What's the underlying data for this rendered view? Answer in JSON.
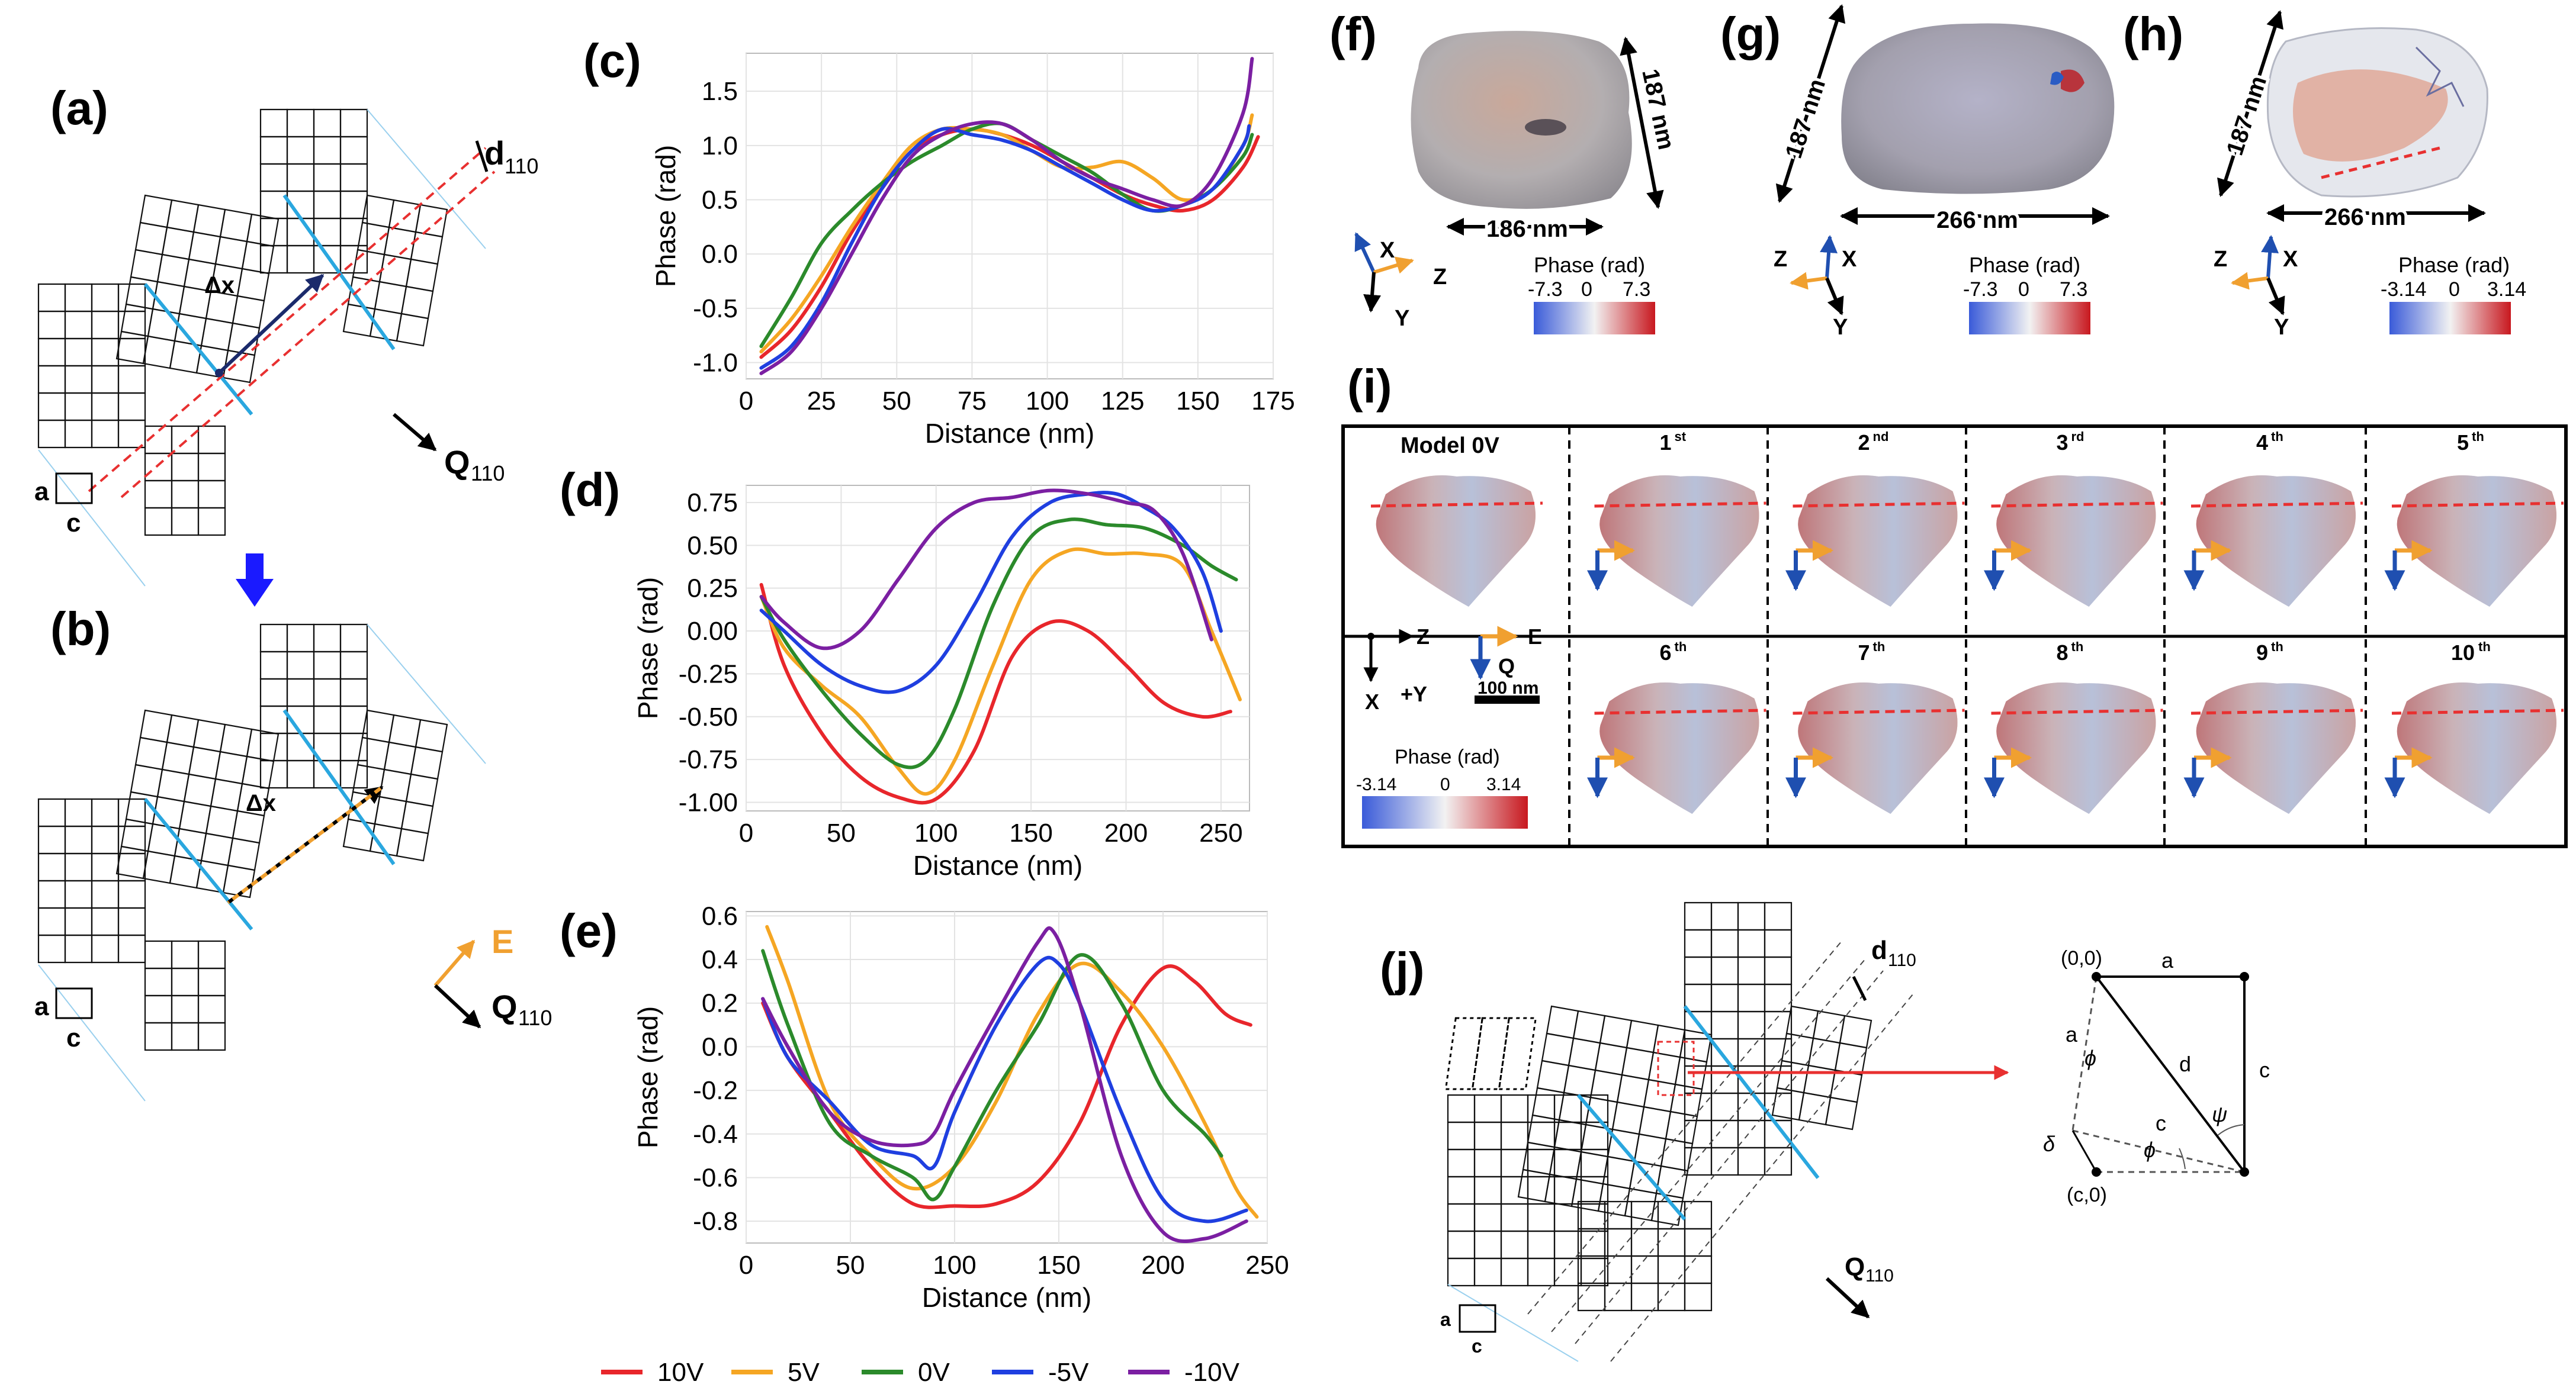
{
  "panels": {
    "a": "(a)",
    "b": "(b)",
    "c": "(c)",
    "d": "(d)",
    "e": "(e)",
    "f": "(f)",
    "g": "(g)",
    "h": "(h)",
    "i": "(i)",
    "j": "(j)"
  },
  "lattice": {
    "d110": "d",
    "d110_sub": "110",
    "q110": "Q",
    "q110_sub": "110",
    "dx": "Δx",
    "e_label": "E",
    "a": "a",
    "c": "c"
  },
  "colors": {
    "10V": "#e8262b",
    "5V": "#f5a623",
    "0V": "#2b8a2b",
    "-5V": "#1f3fe0",
    "-10V": "#7b1fa2",
    "twin": "#2aa7df",
    "arrow": "#1a1aff",
    "e_field": "#f0a030",
    "red_dash": "#e83030"
  },
  "legend": [
    {
      "label": "10V",
      "key": "10V"
    },
    {
      "label": "5V",
      "key": "5V"
    },
    {
      "label": "0V",
      "key": "0V"
    },
    {
      "label": "-5V",
      "key": "-5V"
    },
    {
      "label": "-10V",
      "key": "-10V"
    }
  ],
  "chart_data": [
    {
      "panel": "c",
      "type": "line",
      "xlabel": "Distance (nm)",
      "ylabel": "Phase (rad)",
      "xlim": [
        0,
        175
      ],
      "ylim": [
        -1.15,
        1.85
      ],
      "xticks": [
        0,
        25,
        50,
        75,
        100,
        125,
        150,
        175
      ],
      "yticks": [
        -1.0,
        -0.5,
        0.0,
        0.5,
        1.0,
        1.5
      ],
      "grid": true,
      "series": [
        {
          "name": "10V",
          "x": [
            5,
            15,
            25,
            35,
            45,
            55,
            65,
            75,
            85,
            95,
            105,
            115,
            125,
            135,
            145,
            155,
            165,
            170
          ],
          "y": [
            -0.95,
            -0.7,
            -0.3,
            0.2,
            0.6,
            0.95,
            1.1,
            1.15,
            1.1,
            1.0,
            0.85,
            0.7,
            0.55,
            0.45,
            0.4,
            0.5,
            0.8,
            1.08
          ]
        },
        {
          "name": "5V",
          "x": [
            5,
            15,
            25,
            35,
            45,
            55,
            65,
            75,
            85,
            95,
            105,
            115,
            125,
            135,
            145,
            155,
            165,
            168
          ],
          "y": [
            -0.9,
            -0.6,
            -0.2,
            0.25,
            0.65,
            1.0,
            1.15,
            1.15,
            1.1,
            0.95,
            0.8,
            0.8,
            0.85,
            0.7,
            0.5,
            0.6,
            1.0,
            1.28
          ]
        },
        {
          "name": "0V",
          "x": [
            5,
            15,
            25,
            35,
            45,
            55,
            65,
            75,
            85,
            95,
            105,
            115,
            125,
            135,
            145,
            155,
            165,
            168
          ],
          "y": [
            -0.85,
            -0.4,
            0.1,
            0.4,
            0.65,
            0.85,
            1.0,
            1.15,
            1.2,
            1.05,
            0.9,
            0.75,
            0.55,
            0.4,
            0.45,
            0.6,
            0.9,
            1.1
          ]
        },
        {
          "name": "-5V",
          "x": [
            5,
            15,
            25,
            35,
            45,
            55,
            65,
            75,
            85,
            95,
            105,
            115,
            125,
            135,
            145,
            155,
            165,
            167
          ],
          "y": [
            -1.05,
            -0.85,
            -0.45,
            0.1,
            0.6,
            0.95,
            1.15,
            1.1,
            1.05,
            0.95,
            0.8,
            0.65,
            0.5,
            0.4,
            0.45,
            0.6,
            1.0,
            1.18
          ]
        },
        {
          "name": "-10V",
          "x": [
            5,
            15,
            25,
            35,
            45,
            55,
            65,
            75,
            85,
            95,
            105,
            115,
            125,
            135,
            145,
            155,
            165,
            168
          ],
          "y": [
            -1.1,
            -0.9,
            -0.5,
            0.0,
            0.5,
            0.9,
            1.1,
            1.2,
            1.2,
            1.05,
            0.85,
            0.7,
            0.6,
            0.5,
            0.45,
            0.7,
            1.3,
            1.8
          ]
        }
      ]
    },
    {
      "panel": "d",
      "type": "line",
      "xlabel": "Distance (nm)",
      "ylabel": "Phase (rad)",
      "xlim": [
        0,
        265
      ],
      "ylim": [
        -1.05,
        0.85
      ],
      "xticks": [
        0,
        50,
        100,
        150,
        200,
        250
      ],
      "yticks": [
        -1.0,
        -0.75,
        -0.5,
        -0.25,
        0.0,
        0.25,
        0.5,
        0.75
      ],
      "grid": true,
      "series": [
        {
          "name": "10V",
          "x": [
            8,
            20,
            40,
            60,
            80,
            100,
            120,
            140,
            160,
            180,
            200,
            220,
            240,
            255
          ],
          "y": [
            0.27,
            -0.2,
            -0.6,
            -0.85,
            -0.97,
            -0.98,
            -0.7,
            -0.15,
            0.05,
            0.0,
            -0.2,
            -0.42,
            -0.5,
            -0.47
          ]
        },
        {
          "name": "5V",
          "x": [
            8,
            20,
            40,
            60,
            80,
            95,
            110,
            130,
            150,
            170,
            190,
            210,
            230,
            245,
            260
          ],
          "y": [
            0.2,
            -0.1,
            -0.32,
            -0.5,
            -0.8,
            -0.95,
            -0.75,
            -0.2,
            0.3,
            0.47,
            0.45,
            0.45,
            0.38,
            0.0,
            -0.4
          ]
        },
        {
          "name": "0V",
          "x": [
            8,
            20,
            40,
            60,
            80,
            95,
            110,
            130,
            150,
            170,
            190,
            210,
            230,
            245,
            258
          ],
          "y": [
            0.2,
            -0.05,
            -0.35,
            -0.6,
            -0.78,
            -0.75,
            -0.45,
            0.15,
            0.55,
            0.65,
            0.62,
            0.6,
            0.5,
            0.38,
            0.3
          ]
        },
        {
          "name": "-5V",
          "x": [
            8,
            20,
            40,
            60,
            80,
            100,
            120,
            140,
            160,
            180,
            195,
            210,
            225,
            240,
            250
          ],
          "y": [
            0.12,
            0.0,
            -0.2,
            -0.32,
            -0.35,
            -0.2,
            0.15,
            0.55,
            0.75,
            0.8,
            0.8,
            0.72,
            0.6,
            0.35,
            0.0
          ]
        },
        {
          "name": "-10V",
          "x": [
            8,
            20,
            40,
            60,
            80,
            100,
            120,
            140,
            160,
            180,
            200,
            215,
            230,
            245
          ],
          "y": [
            0.2,
            0.05,
            -0.1,
            0.0,
            0.3,
            0.6,
            0.75,
            0.78,
            0.82,
            0.8,
            0.75,
            0.7,
            0.45,
            -0.05
          ]
        }
      ]
    },
    {
      "panel": "e",
      "type": "line",
      "xlabel": "Distance (nm)",
      "ylabel": "Phase (rad)",
      "xlim": [
        0,
        250
      ],
      "ylim": [
        -0.9,
        0.62
      ],
      "xticks": [
        0,
        50,
        100,
        150,
        200,
        250
      ],
      "yticks": [
        -0.8,
        -0.6,
        -0.4,
        -0.2,
        0.0,
        0.2,
        0.4,
        0.6
      ],
      "grid": true,
      "series": [
        {
          "name": "10V",
          "x": [
            8,
            20,
            40,
            60,
            80,
            100,
            120,
            140,
            160,
            180,
            200,
            215,
            230,
            242
          ],
          "y": [
            0.2,
            -0.05,
            -0.3,
            -0.55,
            -0.72,
            -0.73,
            -0.72,
            -0.62,
            -0.35,
            0.1,
            0.36,
            0.3,
            0.15,
            0.1
          ]
        },
        {
          "name": "5V",
          "x": [
            10,
            20,
            40,
            60,
            80,
            100,
            120,
            140,
            160,
            180,
            200,
            220,
            235,
            245
          ],
          "y": [
            0.55,
            0.3,
            -0.25,
            -0.5,
            -0.65,
            -0.55,
            -0.25,
            0.15,
            0.38,
            0.25,
            0.0,
            -0.35,
            -0.65,
            -0.78
          ]
        },
        {
          "name": "0V",
          "x": [
            8,
            20,
            40,
            60,
            80,
            90,
            100,
            120,
            140,
            160,
            180,
            200,
            220,
            228
          ],
          "y": [
            0.44,
            0.1,
            -0.35,
            -0.5,
            -0.6,
            -0.7,
            -0.55,
            -0.2,
            0.1,
            0.42,
            0.2,
            -0.2,
            -0.4,
            -0.5
          ]
        },
        {
          "name": "-5V",
          "x": [
            8,
            20,
            40,
            60,
            80,
            90,
            100,
            120,
            140,
            150,
            160,
            180,
            200,
            220,
            240
          ],
          "y": [
            0.22,
            -0.05,
            -0.25,
            -0.45,
            -0.5,
            -0.55,
            -0.3,
            0.1,
            0.38,
            0.38,
            0.2,
            -0.3,
            -0.7,
            -0.8,
            -0.75
          ]
        },
        {
          "name": "-10V",
          "x": [
            8,
            20,
            40,
            60,
            80,
            90,
            100,
            120,
            140,
            148,
            160,
            180,
            200,
            220,
            240
          ],
          "y": [
            0.22,
            0.0,
            -0.3,
            -0.43,
            -0.45,
            -0.4,
            -0.2,
            0.15,
            0.48,
            0.52,
            0.2,
            -0.5,
            -0.85,
            -0.88,
            -0.8
          ]
        }
      ]
    }
  ],
  "reconstructions": {
    "f": {
      "dim1": "186 nm",
      "dim2": "187 nm",
      "axes": [
        "X",
        "Z",
        "Y"
      ],
      "cbar_title": "Phase (rad)",
      "cbar_ticks": [
        "-7.3",
        "0",
        "7.3"
      ]
    },
    "g": {
      "dim1": "266 nm",
      "dim2": "187 nm",
      "axes": [
        "Z",
        "X",
        "Y"
      ],
      "cbar_title": "Phase (rad)",
      "cbar_ticks": [
        "-7.3",
        "0",
        "7.3"
      ]
    },
    "h": {
      "dim1": "266 nm",
      "dim2": "187 nm",
      "axes": [
        "Z",
        "X",
        "Y"
      ],
      "cbar_title": "Phase (rad)",
      "cbar_ticks": [
        "-3.14",
        "0",
        "3.14"
      ]
    }
  },
  "panel_i": {
    "model_label": "Model 0V",
    "frames": [
      {
        "n": "1",
        "sup": "st"
      },
      {
        "n": "2",
        "sup": "nd"
      },
      {
        "n": "3",
        "sup": "rd"
      },
      {
        "n": "4",
        "sup": "th"
      },
      {
        "n": "5",
        "sup": "th"
      },
      {
        "n": "6",
        "sup": "th"
      },
      {
        "n": "7",
        "sup": "th"
      },
      {
        "n": "8",
        "sup": "th"
      },
      {
        "n": "9",
        "sup": "th"
      },
      {
        "n": "10",
        "sup": "th"
      }
    ],
    "axis_z": "Z",
    "axis_x": "X",
    "axis_y": "+Y",
    "e_label": "E",
    "q_label": "Q",
    "scale": "100 nm",
    "cbar_title": "Phase (rad)",
    "cbar_ticks": [
      "-3.14",
      "0",
      "3.14"
    ]
  },
  "panel_j": {
    "d110": "d",
    "d110_sub": "110",
    "q110": "Q",
    "q110_sub": "110",
    "a": "a",
    "c": "c",
    "geom": {
      "p00": "(0,0)",
      "pc0": "(c,0)",
      "a_top": "a",
      "a_left": "a",
      "c_right": "c",
      "c_mid": "c",
      "d": "d",
      "phi1": "ϕ",
      "phi2": "ϕ",
      "psi": "ψ",
      "delta": "δ"
    }
  }
}
